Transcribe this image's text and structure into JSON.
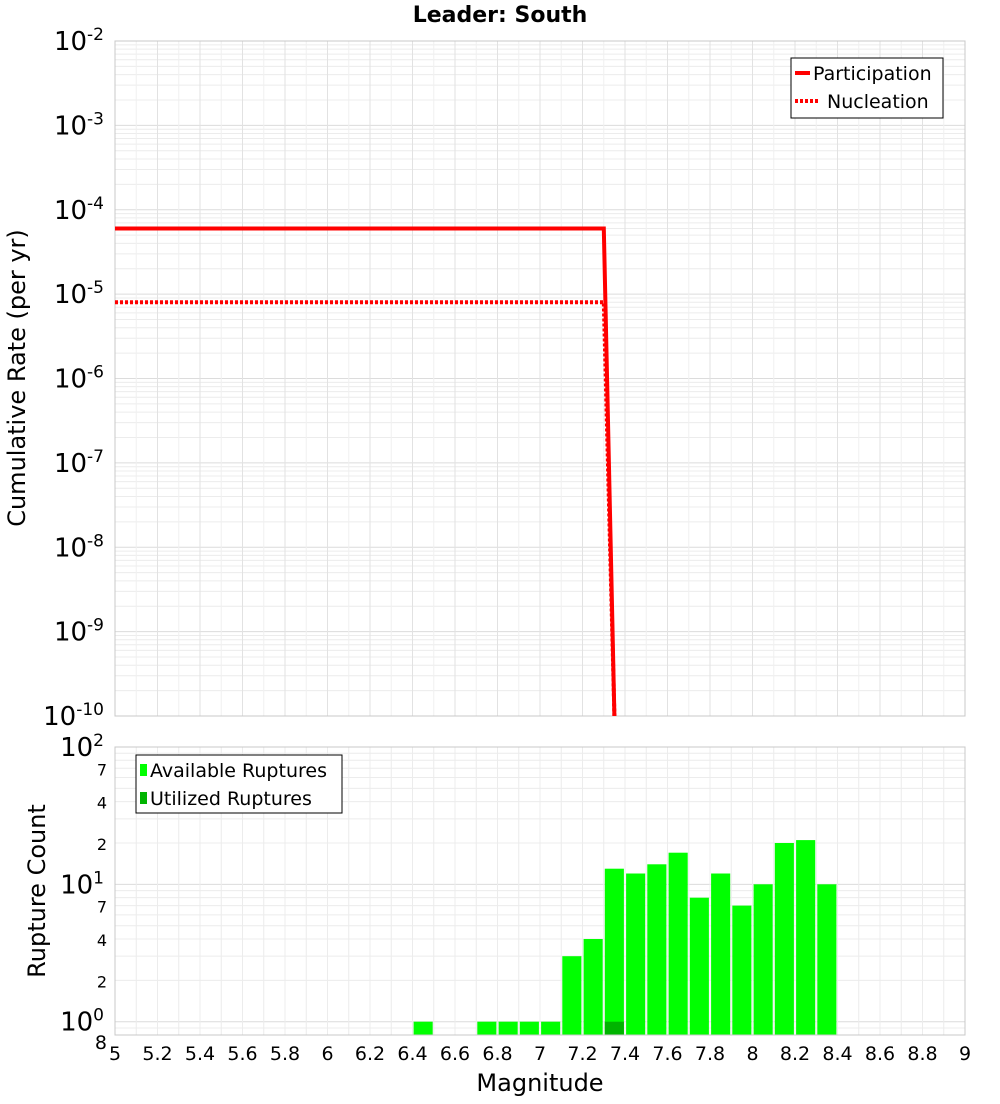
{
  "chart_data": [
    {
      "type": "line",
      "title": "Leader: South",
      "ylabel": "Cumulative Rate (per yr)",
      "xlabel": "",
      "y_scale": "log",
      "xlim": [
        5,
        9
      ],
      "ylim": [
        1e-10,
        0.01
      ],
      "y_ticks": [
        {
          "base": "10",
          "exp": "-2"
        },
        {
          "base": "10",
          "exp": "-3"
        },
        {
          "base": "10",
          "exp": "-4"
        },
        {
          "base": "10",
          "exp": "-5"
        },
        {
          "base": "10",
          "exp": "-6"
        },
        {
          "base": "10",
          "exp": "-7"
        },
        {
          "base": "10",
          "exp": "-8"
        },
        {
          "base": "10",
          "exp": "-9"
        },
        {
          "base": "10",
          "exp": "-10"
        }
      ],
      "grid": true,
      "legend_position": "top-right",
      "series": [
        {
          "name": "Participation",
          "style": "solid",
          "color": "#ff0000",
          "x": [
            5.0,
            7.3,
            7.35
          ],
          "y": [
            6e-05,
            6e-05,
            1e-10
          ]
        },
        {
          "name": "Nucleation",
          "style": "dotted",
          "color": "#ff0000",
          "x": [
            5.0,
            7.3,
            7.35
          ],
          "y": [
            8e-06,
            8e-06,
            1e-10
          ]
        }
      ]
    },
    {
      "type": "bar",
      "title": "",
      "xlabel": "Magnitude",
      "ylabel": "Rupture Count",
      "y_scale": "log",
      "xlim": [
        5,
        9
      ],
      "ylim": [
        0.8,
        100
      ],
      "x_ticks": [
        "5",
        "5.2",
        "5.4",
        "5.6",
        "5.8",
        "6",
        "6.2",
        "6.4",
        "6.6",
        "6.8",
        "7",
        "7.2",
        "7.4",
        "7.6",
        "7.8",
        "8",
        "8.2",
        "8.4",
        "8.6",
        "8.8",
        "9"
      ],
      "y_major_ticks": [
        {
          "value": 1,
          "base": "10",
          "exp": "0"
        },
        {
          "value": 10,
          "base": "10",
          "exp": "1"
        },
        {
          "value": 100,
          "base": "10",
          "exp": "2"
        }
      ],
      "y_minor_labels": [
        {
          "value": 0.8,
          "label": "8"
        },
        {
          "value": 2,
          "label": "2"
        },
        {
          "value": 4,
          "label": "4"
        },
        {
          "value": 7,
          "label": "7"
        },
        {
          "value": 20,
          "label": "2"
        },
        {
          "value": 40,
          "label": "4"
        },
        {
          "value": 70,
          "label": "7"
        }
      ],
      "grid": true,
      "legend_position": "top-left",
      "bar_width": 0.09,
      "series": [
        {
          "name": "Available Ruptures",
          "color": "#00ff00",
          "x": [
            6.45,
            6.75,
            6.85,
            6.95,
            7.05,
            7.15,
            7.25,
            7.35,
            7.45,
            7.55,
            7.65,
            7.75,
            7.85,
            7.95,
            8.05,
            8.15,
            8.25,
            8.35
          ],
          "values": [
            1,
            1,
            1,
            1,
            1,
            3,
            4,
            13,
            12,
            14,
            17,
            8,
            12,
            7,
            10,
            20,
            21,
            10
          ]
        },
        {
          "name": "Utilized Ruptures",
          "color": "#00b400",
          "x": [
            7.35
          ],
          "values": [
            1
          ]
        }
      ]
    }
  ]
}
